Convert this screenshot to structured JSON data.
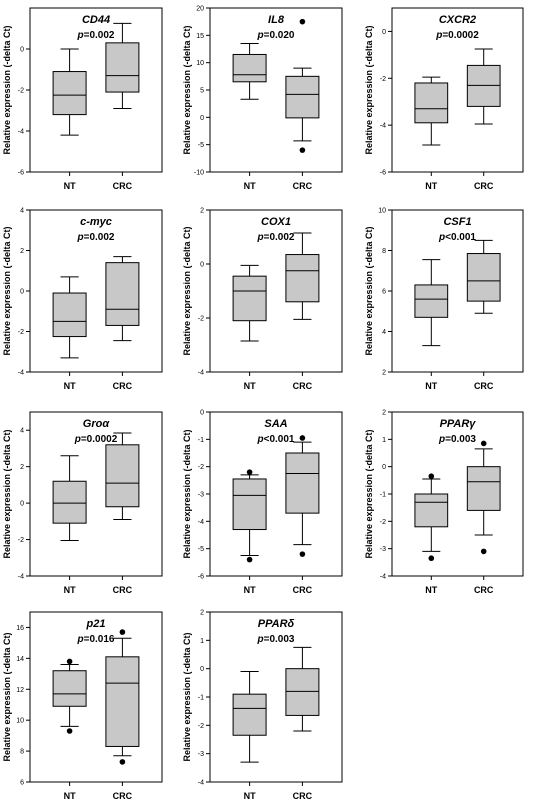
{
  "chart_data": [
    {
      "type": "box",
      "title": "CD44",
      "pvalue": "=0.002",
      "ylabel": "Relative expression (-delta Ct)",
      "ylim": [
        -6,
        2
      ],
      "yticks": [
        -6,
        -4,
        -2,
        0
      ],
      "categories": [
        "NT",
        "CRC"
      ],
      "boxes": [
        {
          "name": "NT",
          "whislo": -4.2,
          "q1": -3.2,
          "median": -2.25,
          "q3": -1.1,
          "whishi": 0.0,
          "outliers": []
        },
        {
          "name": "CRC",
          "whislo": -2.9,
          "q1": -2.1,
          "median": -1.3,
          "q3": 0.3,
          "whishi": 1.25,
          "outliers": []
        }
      ]
    },
    {
      "type": "box",
      "title": "IL8",
      "pvalue": "=0.020",
      "ylabel": "Relative expression (-delta Ct)",
      "ylim": [
        -10,
        20
      ],
      "yticks": [
        -10,
        -5,
        0,
        5,
        10,
        15,
        20
      ],
      "categories": [
        "NT",
        "CRC"
      ],
      "boxes": [
        {
          "name": "NT",
          "whislo": 3.3,
          "q1": 6.5,
          "median": 7.8,
          "q3": 11.5,
          "whishi": 13.5,
          "outliers": []
        },
        {
          "name": "CRC",
          "whislo": -4.3,
          "q1": -0.1,
          "median": 4.2,
          "q3": 7.5,
          "whishi": 9.0,
          "outliers": [
            -6.0,
            17.5
          ]
        }
      ]
    },
    {
      "type": "box",
      "title": "CXCR2",
      "pvalue": "=0.0002",
      "ylabel": "Relative expression (-delta Ct)",
      "ylim": [
        -6,
        1
      ],
      "yticks": [
        -6,
        -4,
        -2,
        0
      ],
      "categories": [
        "NT",
        "CRC"
      ],
      "boxes": [
        {
          "name": "NT",
          "whislo": -4.85,
          "q1": -3.9,
          "median": -3.3,
          "q3": -2.2,
          "whishi": -1.95,
          "outliers": []
        },
        {
          "name": "CRC",
          "whislo": -3.95,
          "q1": -3.2,
          "median": -2.3,
          "q3": -1.45,
          "whishi": -0.75,
          "outliers": []
        }
      ]
    },
    {
      "type": "box",
      "title": "c-myc",
      "pvalue": "=0.002",
      "ylabel": "Relative expression (-delta Ct)",
      "ylim": [
        -4,
        4
      ],
      "yticks": [
        -4,
        -2,
        0,
        2,
        4
      ],
      "categories": [
        "NT",
        "CRC"
      ],
      "boxes": [
        {
          "name": "NT",
          "whislo": -3.3,
          "q1": -2.25,
          "median": -1.5,
          "q3": -0.1,
          "whishi": 0.7,
          "outliers": []
        },
        {
          "name": "CRC",
          "whislo": -2.45,
          "q1": -1.7,
          "median": -0.9,
          "q3": 1.4,
          "whishi": 1.7,
          "outliers": []
        }
      ]
    },
    {
      "type": "box",
      "title": "COX1",
      "pvalue": "=0.002",
      "ylabel": "Relative expression (-delta Ct)",
      "ylim": [
        -4,
        2
      ],
      "yticks": [
        -4,
        -2,
        0,
        2
      ],
      "categories": [
        "NT",
        "CRC"
      ],
      "boxes": [
        {
          "name": "NT",
          "whislo": -2.85,
          "q1": -2.1,
          "median": -1.0,
          "q3": -0.45,
          "whishi": -0.05,
          "outliers": []
        },
        {
          "name": "CRC",
          "whislo": -2.05,
          "q1": -1.4,
          "median": -0.25,
          "q3": 0.35,
          "whishi": 1.15,
          "outliers": []
        }
      ]
    },
    {
      "type": "box",
      "title": "CSF1",
      "pvalue": "<0.001",
      "ylabel": "Relative expression (-delta Ct)",
      "ylim": [
        2,
        10
      ],
      "yticks": [
        2,
        4,
        6,
        8,
        10
      ],
      "categories": [
        "NT",
        "CRC"
      ],
      "boxes": [
        {
          "name": "NT",
          "whislo": 3.3,
          "q1": 4.7,
          "median": 5.6,
          "q3": 6.3,
          "whishi": 7.55,
          "outliers": []
        },
        {
          "name": "CRC",
          "whislo": 4.9,
          "q1": 5.5,
          "median": 6.5,
          "q3": 7.85,
          "whishi": 8.5,
          "outliers": []
        }
      ]
    },
    {
      "type": "box",
      "title": "Groα",
      "pvalue": "=0.0002",
      "ylabel": "Relative expression (-delta Ct)",
      "ylim": [
        -4,
        5
      ],
      "yticks": [
        -4,
        -2,
        0,
        2,
        4
      ],
      "categories": [
        "NT",
        "CRC"
      ],
      "boxes": [
        {
          "name": "NT",
          "whislo": -2.05,
          "q1": -1.1,
          "median": 0.0,
          "q3": 1.2,
          "whishi": 2.6,
          "outliers": []
        },
        {
          "name": "CRC",
          "whislo": -0.9,
          "q1": -0.2,
          "median": 1.1,
          "q3": 3.2,
          "whishi": 3.85,
          "outliers": []
        }
      ]
    },
    {
      "type": "box",
      "title": "SAA",
      "pvalue": "<0.001",
      "ylabel": "Relative expression (-delta Ct)",
      "ylim": [
        -6,
        0
      ],
      "yticks": [
        -6,
        -5,
        -4,
        -3,
        -2,
        -1,
        0
      ],
      "categories": [
        "NT",
        "CRC"
      ],
      "boxes": [
        {
          "name": "NT",
          "whislo": -5.25,
          "q1": -4.3,
          "median": -3.05,
          "q3": -2.45,
          "whishi": -2.3,
          "outliers": [
            -5.4,
            -2.2
          ]
        },
        {
          "name": "CRC",
          "whislo": -4.85,
          "q1": -3.7,
          "median": -2.25,
          "q3": -1.5,
          "whishi": -1.1,
          "outliers": [
            -5.2,
            -0.95
          ]
        }
      ]
    },
    {
      "type": "box",
      "title": "PPARγ",
      "pvalue": "=0.003",
      "ylabel": "Relative expression (-delta Ct)",
      "ylim": [
        -4,
        2
      ],
      "yticks": [
        -4,
        -3,
        -2,
        -1,
        0,
        1,
        2
      ],
      "categories": [
        "NT",
        "CRC"
      ],
      "boxes": [
        {
          "name": "NT",
          "whislo": -3.1,
          "q1": -2.2,
          "median": -1.3,
          "q3": -1.0,
          "whishi": -0.45,
          "outliers": [
            -3.35,
            -0.35
          ]
        },
        {
          "name": "CRC",
          "whislo": -2.5,
          "q1": -1.6,
          "median": -0.55,
          "q3": 0.0,
          "whishi": 0.65,
          "outliers": [
            -3.1,
            0.85
          ]
        }
      ]
    },
    {
      "type": "box",
      "title": "p21",
      "pvalue": "=0.016",
      "ylabel": "Relative expression (-delta Ct)",
      "ylim": [
        6,
        17
      ],
      "yticks": [
        6,
        8,
        10,
        12,
        14,
        16
      ],
      "categories": [
        "NT",
        "CRC"
      ],
      "boxes": [
        {
          "name": "NT",
          "whislo": 9.6,
          "q1": 10.9,
          "median": 11.7,
          "q3": 13.2,
          "whishi": 13.6,
          "outliers": [
            9.3,
            13.8
          ]
        },
        {
          "name": "CRC",
          "whislo": 7.7,
          "q1": 8.3,
          "median": 12.4,
          "q3": 14.1,
          "whishi": 15.3,
          "outliers": [
            7.3,
            15.7
          ]
        }
      ]
    },
    {
      "type": "box",
      "title": "PPARδ",
      "pvalue": "=0.003",
      "ylabel": "Relative expression (-delta Ct)",
      "ylim": [
        -4,
        2
      ],
      "yticks": [
        -4,
        -3,
        -2,
        -1,
        0,
        1,
        2
      ],
      "categories": [
        "NT",
        "CRC"
      ],
      "boxes": [
        {
          "name": "NT",
          "whislo": -3.3,
          "q1": -2.35,
          "median": -1.4,
          "q3": -0.9,
          "whishi": -0.1,
          "outliers": []
        },
        {
          "name": "CRC",
          "whislo": -2.2,
          "q1": -1.65,
          "median": -0.8,
          "q3": 0.0,
          "whishi": 0.75,
          "outliers": []
        }
      ]
    }
  ]
}
